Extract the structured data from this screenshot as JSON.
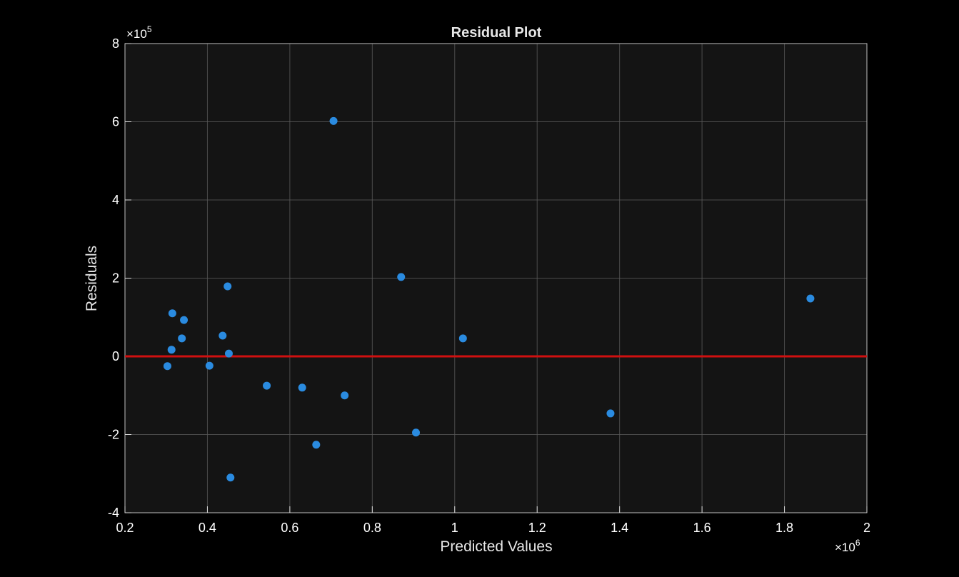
{
  "chart_data": {
    "type": "scatter",
    "title": "Residual Plot",
    "xlabel": "Predicted Values",
    "ylabel": "Residuals",
    "xlim": [
      200000,
      2000000
    ],
    "ylim": [
      -400000,
      800000
    ],
    "x_ticks": [
      200000,
      400000,
      600000,
      800000,
      1000000,
      1200000,
      1400000,
      1600000,
      1800000,
      2000000
    ],
    "x_tick_labels": [
      "0.2",
      "0.4",
      "0.6",
      "0.8",
      "1",
      "1.2",
      "1.4",
      "1.6",
      "1.8",
      "2"
    ],
    "y_ticks": [
      -400000,
      -200000,
      0,
      200000,
      400000,
      600000,
      800000
    ],
    "y_tick_labels": [
      "-4",
      "-2",
      "0",
      "2",
      "4",
      "6",
      "8"
    ],
    "x_exponent": {
      "base": "×10",
      "power": "6"
    },
    "y_exponent": {
      "base": "×10",
      "power": "5"
    },
    "grid": true,
    "reference_line": {
      "y": 0,
      "color": "#d01010"
    },
    "marker_color": "#2a8be0",
    "background_color": "#141414",
    "points": [
      {
        "x": 303000,
        "y": -25000
      },
      {
        "x": 313000,
        "y": 17000
      },
      {
        "x": 315000,
        "y": 110000
      },
      {
        "x": 338000,
        "y": 46000
      },
      {
        "x": 343000,
        "y": 93000
      },
      {
        "x": 405000,
        "y": -24000
      },
      {
        "x": 437000,
        "y": 53000
      },
      {
        "x": 449000,
        "y": 179000
      },
      {
        "x": 452000,
        "y": 7000
      },
      {
        "x": 456000,
        "y": -310000
      },
      {
        "x": 544000,
        "y": -75000
      },
      {
        "x": 630000,
        "y": -80000
      },
      {
        "x": 664000,
        "y": -226000
      },
      {
        "x": 706000,
        "y": 602000
      },
      {
        "x": 733000,
        "y": -100000
      },
      {
        "x": 870000,
        "y": 203000
      },
      {
        "x": 906000,
        "y": -195000
      },
      {
        "x": 1020000,
        "y": 46000
      },
      {
        "x": 1378000,
        "y": -146000
      },
      {
        "x": 1863000,
        "y": 148000
      }
    ]
  }
}
